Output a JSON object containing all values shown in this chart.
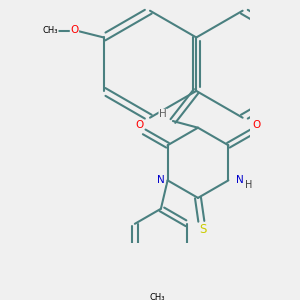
{
  "bg_color": "#f0f0f0",
  "bond_color": "#4a8080",
  "bond_width": 1.5,
  "heteroatom_colors": {
    "O": "#ff0000",
    "N": "#0000cc",
    "S": "#cccc00",
    "H": "#808080"
  },
  "font_size": 7.5
}
